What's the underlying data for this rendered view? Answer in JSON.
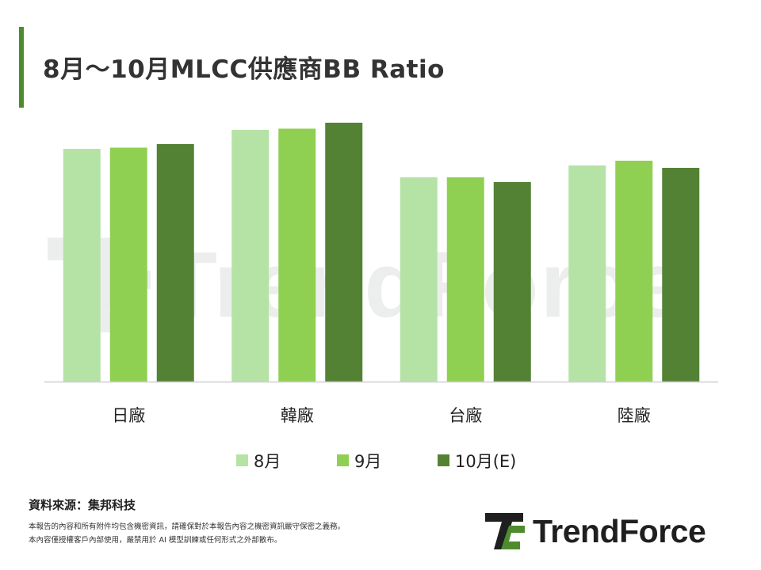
{
  "title": "8月～10月MLCC供應商BB Ratio",
  "colors": {
    "accent": "#4e8b2e",
    "aug": "#b5e3a6",
    "sep": "#8fd052",
    "oct": "#548235",
    "axis": "#cfcfcf"
  },
  "chart_data": {
    "type": "bar",
    "categories": [
      "日廠",
      "韓廠",
      "台廠",
      "陸廠"
    ],
    "series": [
      {
        "name": "8月",
        "values": [
          0.98,
          1.06,
          0.86,
          0.91
        ]
      },
      {
        "name": "9月",
        "values": [
          0.985,
          1.065,
          0.86,
          0.93
        ]
      },
      {
        "name": "10月(E)",
        "values": [
          1.0,
          1.09,
          0.84,
          0.9
        ]
      }
    ],
    "ylim": [
      0,
      1.2
    ],
    "grid": false,
    "legend": "bottom",
    "xlabel": "",
    "ylabel": ""
  },
  "footer": {
    "source": "資料來源：集邦科技",
    "disclaimer_line1": "本報告的內容和所有附件均包含機密資訊，請確保對於本報告內容之機密資訊嚴守保密之義務。",
    "disclaimer_line2": "本內容僅授權客戶內部使用，嚴禁用於 AI 模型訓練或任何形式之外部散布。"
  },
  "logo": {
    "text": "TrendForce",
    "icon": "trendforce-logo-icon"
  },
  "watermark": {
    "text": "TrendForce",
    "icon": "trendforce-watermark-icon"
  }
}
